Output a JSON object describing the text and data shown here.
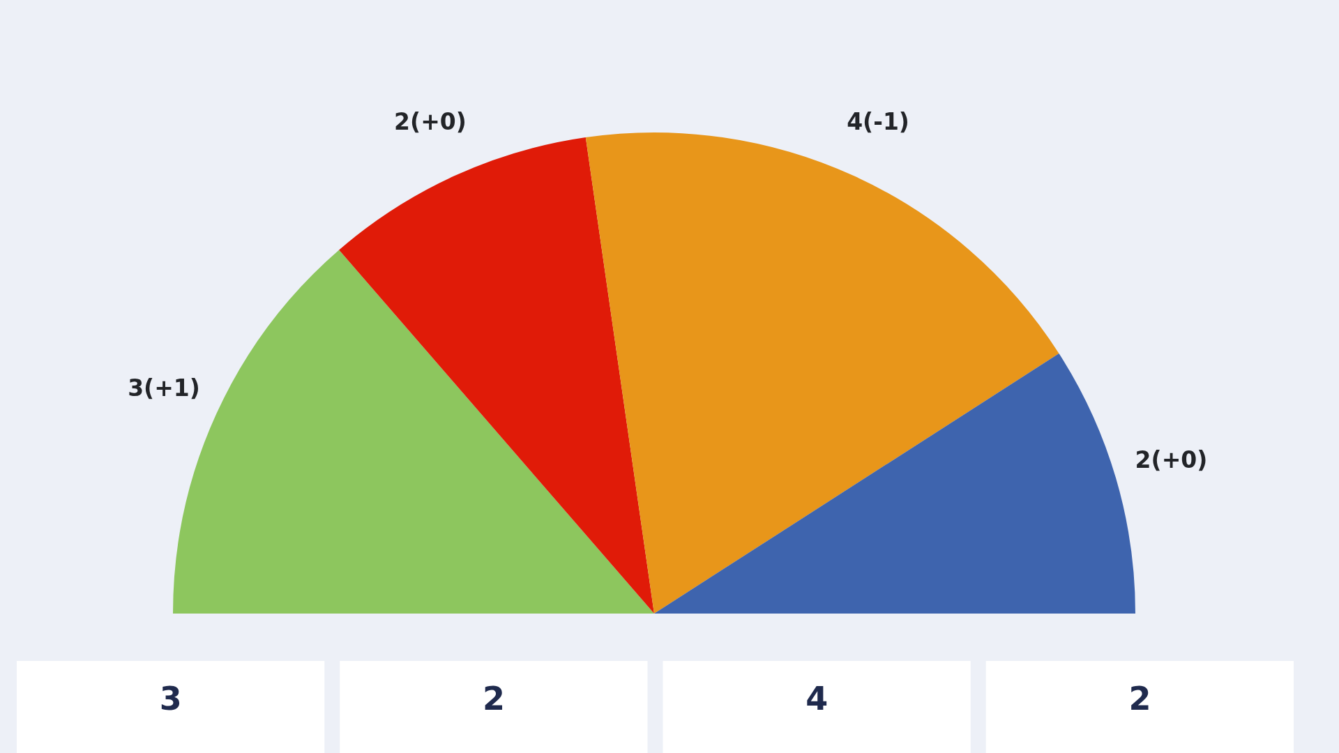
{
  "chart_data": {
    "type": "pie",
    "categories": [
      null,
      null,
      null,
      null
    ],
    "values": [
      3,
      2,
      4,
      2
    ],
    "colors": [
      "#8dc65e",
      "#e01b08",
      "#e8961a",
      "#3e64ae"
    ],
    "value_labels": [
      "3(+1)",
      "2(+0)",
      "4(-1)",
      "2(+0)"
    ],
    "annotations": [
      "3",
      "2",
      "4",
      "2"
    ]
  }
}
